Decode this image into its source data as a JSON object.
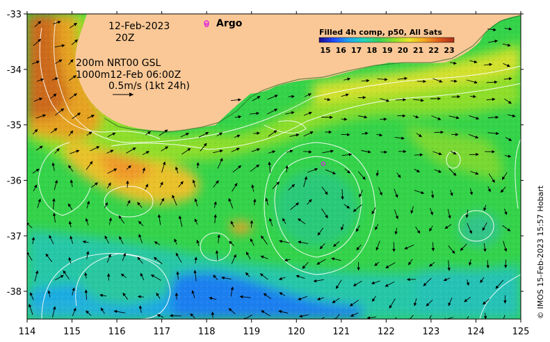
{
  "chart_data": {
    "type": "heatmap",
    "title": "",
    "x_axis": {
      "ticks": [
        114,
        115,
        116,
        117,
        118,
        119,
        120,
        121,
        122,
        123,
        124,
        125
      ],
      "range": [
        114,
        125
      ]
    },
    "y_axis": {
      "ticks": [
        -33,
        -34,
        -35,
        -36,
        -37,
        -38
      ],
      "range": [
        -38.5,
        -33
      ]
    },
    "colorbar": {
      "title": "Filled 4h comp, p50, All Sats",
      "ticks": [
        15,
        16,
        17,
        18,
        19,
        20,
        21,
        22,
        23
      ],
      "colors": [
        "#1a0a8c",
        "#1f4cff",
        "#1ea8f0",
        "#22d6b8",
        "#39d05a",
        "#8ee02a",
        "#e8e628",
        "#f5a623",
        "#e05a1a",
        "#a8301a"
      ]
    },
    "annotations": {
      "date": "12-Feb-2023",
      "time": "20Z",
      "depth_200": "200m  NRT00 GSL",
      "depth_1000": "1000m12-Feb 06:00Z",
      "scale": "0.5m/s (1kt 24h)"
    },
    "argo": {
      "label": "Argo",
      "color": "#e020e0",
      "points": [
        {
          "lon": 118.0,
          "lat": -33.2
        },
        {
          "lon": 120.6,
          "lat": -35.7
        }
      ]
    },
    "credit": "© IMOS 15-Feb-2023 15:57 Hobart",
    "land_color": "#fac896"
  }
}
